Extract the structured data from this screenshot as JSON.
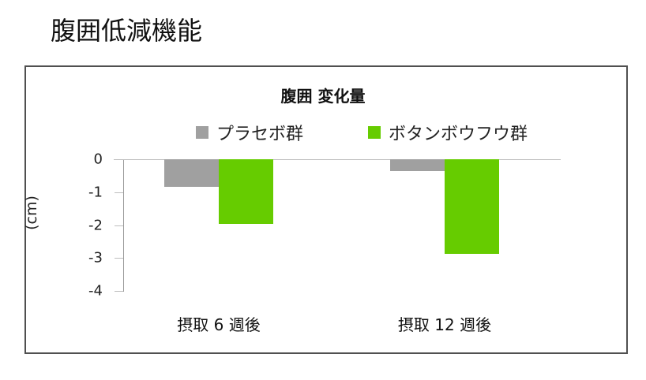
{
  "page": {
    "title": "腹囲低減機能"
  },
  "chart_data": {
    "type": "bar",
    "title": "腹囲 変化量",
    "xlabel": "",
    "ylabel": "(cm)",
    "ylim": [
      -4,
      0
    ],
    "yticks": [
      "0",
      "-1",
      "-2",
      "-3",
      "-4"
    ],
    "categories": [
      "摂取 6 週後",
      "摂取 12 週後"
    ],
    "series": [
      {
        "name": "プラセボ群",
        "color": "#A0A0A0",
        "values": [
          -0.83,
          -0.35
        ]
      },
      {
        "name": "ボタンボウフウ群",
        "color": "#66CC00",
        "values": [
          -1.95,
          -2.88
        ]
      }
    ],
    "legend_position": "top",
    "grid": false
  }
}
